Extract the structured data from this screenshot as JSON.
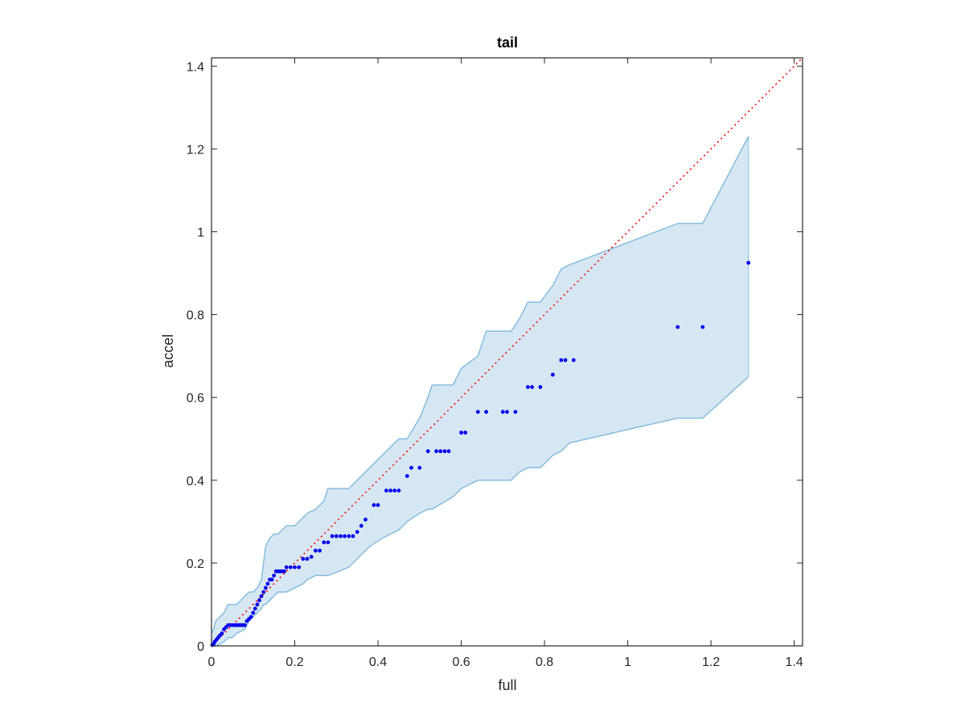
{
  "chart_data": {
    "type": "scatter",
    "title": "tail",
    "xlabel": "full",
    "ylabel": "accel",
    "xlim": [
      0,
      1.42
    ],
    "ylim": [
      0,
      1.42
    ],
    "xticks": [
      0,
      0.2,
      0.4,
      0.6,
      0.8,
      1,
      1.2,
      1.4
    ],
    "yticks": [
      0,
      0.2,
      0.4,
      0.6,
      0.8,
      1,
      1.2,
      1.4
    ],
    "xtick_labels": [
      "0",
      "0.2",
      "0.4",
      "0.6",
      "0.8",
      "1",
      "1.2",
      "1.4"
    ],
    "ytick_labels": [
      "0",
      "0.2",
      "0.4",
      "0.6",
      "0.8",
      "1",
      "1.2",
      "1.4"
    ],
    "grid": false,
    "colors": {
      "points": "#0000ee",
      "band_fill": "#d6e7f4",
      "band_edge": "#86bcdd",
      "reference_line": "#ff0000",
      "axes": "#262626"
    },
    "reference_line": {
      "x": [
        0,
        1.42
      ],
      "y": [
        0,
        1.42
      ]
    },
    "band": {
      "x": [
        0,
        0.005,
        0.01,
        0.02,
        0.03,
        0.04,
        0.05,
        0.06,
        0.08,
        0.09,
        0.1,
        0.11,
        0.12,
        0.125,
        0.13,
        0.14,
        0.15,
        0.16,
        0.18,
        0.2,
        0.22,
        0.23,
        0.25,
        0.27,
        0.28,
        0.33,
        0.35,
        0.38,
        0.41,
        0.45,
        0.47,
        0.5,
        0.52,
        0.53,
        0.58,
        0.6,
        0.64,
        0.66,
        0.7,
        0.72,
        0.74,
        0.76,
        0.79,
        0.82,
        0.84,
        0.86,
        1.12,
        1.18,
        1.29
      ],
      "upper": [
        0.03,
        0.04,
        0.06,
        0.07,
        0.08,
        0.1,
        0.1,
        0.1,
        0.12,
        0.13,
        0.13,
        0.14,
        0.16,
        0.2,
        0.24,
        0.26,
        0.27,
        0.27,
        0.29,
        0.29,
        0.31,
        0.32,
        0.33,
        0.35,
        0.38,
        0.38,
        0.4,
        0.43,
        0.46,
        0.5,
        0.5,
        0.55,
        0.6,
        0.63,
        0.63,
        0.67,
        0.7,
        0.76,
        0.76,
        0.76,
        0.79,
        0.83,
        0.83,
        0.87,
        0.91,
        0.92,
        1.02,
        1.02,
        1.23
      ],
      "lower": [
        0.0,
        0.0,
        0.0,
        0.005,
        0.01,
        0.02,
        0.02,
        0.03,
        0.04,
        0.06,
        0.07,
        0.08,
        0.09,
        0.1,
        0.1,
        0.11,
        0.12,
        0.13,
        0.13,
        0.14,
        0.15,
        0.16,
        0.17,
        0.17,
        0.17,
        0.19,
        0.21,
        0.24,
        0.26,
        0.28,
        0.3,
        0.32,
        0.33,
        0.33,
        0.36,
        0.38,
        0.4,
        0.4,
        0.4,
        0.4,
        0.42,
        0.43,
        0.43,
        0.46,
        0.47,
        0.49,
        0.55,
        0.55,
        0.65
      ]
    },
    "points": {
      "x": [
        0.002,
        0.005,
        0.008,
        0.012,
        0.016,
        0.02,
        0.025,
        0.03,
        0.035,
        0.04,
        0.045,
        0.05,
        0.055,
        0.06,
        0.065,
        0.07,
        0.075,
        0.08,
        0.085,
        0.09,
        0.095,
        0.1,
        0.105,
        0.11,
        0.115,
        0.12,
        0.125,
        0.13,
        0.135,
        0.14,
        0.145,
        0.15,
        0.155,
        0.16,
        0.165,
        0.17,
        0.175,
        0.18,
        0.19,
        0.2,
        0.21,
        0.22,
        0.23,
        0.24,
        0.25,
        0.26,
        0.27,
        0.28,
        0.29,
        0.3,
        0.31,
        0.32,
        0.33,
        0.34,
        0.35,
        0.36,
        0.37,
        0.39,
        0.4,
        0.42,
        0.43,
        0.44,
        0.45,
        0.47,
        0.48,
        0.5,
        0.52,
        0.54,
        0.55,
        0.56,
        0.57,
        0.6,
        0.61,
        0.64,
        0.66,
        0.7,
        0.71,
        0.73,
        0.76,
        0.77,
        0.79,
        0.82,
        0.84,
        0.85,
        0.87,
        1.12,
        1.18,
        1.29
      ],
      "y": [
        0.002,
        0.005,
        0.01,
        0.015,
        0.02,
        0.025,
        0.03,
        0.04,
        0.045,
        0.05,
        0.05,
        0.05,
        0.05,
        0.05,
        0.05,
        0.05,
        0.05,
        0.05,
        0.06,
        0.065,
        0.07,
        0.08,
        0.09,
        0.1,
        0.11,
        0.12,
        0.13,
        0.14,
        0.15,
        0.16,
        0.16,
        0.17,
        0.18,
        0.18,
        0.18,
        0.18,
        0.18,
        0.19,
        0.19,
        0.19,
        0.19,
        0.21,
        0.21,
        0.215,
        0.23,
        0.23,
        0.25,
        0.25,
        0.265,
        0.265,
        0.265,
        0.265,
        0.265,
        0.265,
        0.275,
        0.29,
        0.305,
        0.34,
        0.34,
        0.375,
        0.375,
        0.375,
        0.375,
        0.41,
        0.43,
        0.43,
        0.47,
        0.47,
        0.47,
        0.47,
        0.47,
        0.515,
        0.515,
        0.565,
        0.565,
        0.565,
        0.565,
        0.565,
        0.625,
        0.625,
        0.625,
        0.655,
        0.69,
        0.69,
        0.69,
        0.77,
        0.77,
        0.925
      ]
    }
  }
}
